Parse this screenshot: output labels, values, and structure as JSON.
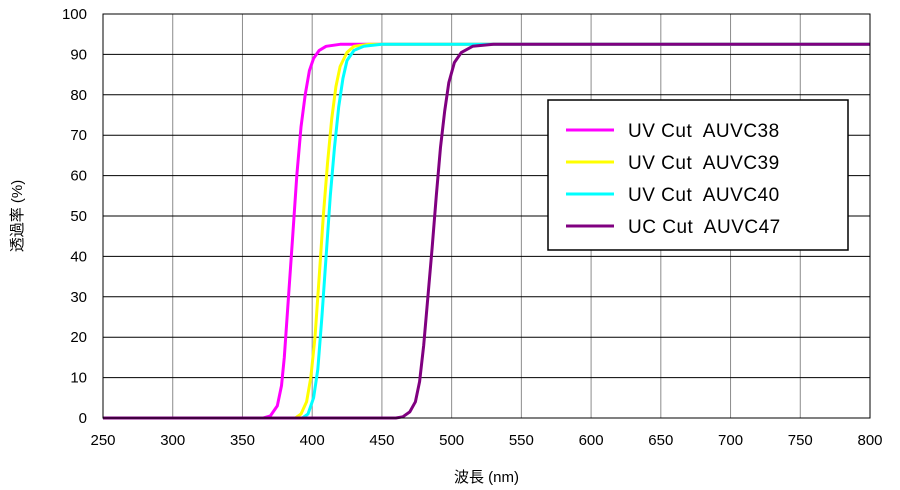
{
  "chart_data": {
    "type": "line",
    "title": "",
    "xlabel": "波長 (nm)",
    "ylabel": "透過率 (%)",
    "xlim": [
      250,
      800
    ],
    "ylim": [
      0,
      100
    ],
    "xticks": [
      250,
      300,
      350,
      400,
      450,
      500,
      550,
      600,
      650,
      700,
      750,
      800
    ],
    "yticks": [
      0,
      10,
      20,
      30,
      40,
      50,
      60,
      70,
      80,
      90,
      100
    ],
    "grid": true,
    "legend_position": "right",
    "series": [
      {
        "name": "UV Cut  AUVC38",
        "color": "#ff00ff",
        "points": [
          [
            250,
            0
          ],
          [
            365,
            0
          ],
          [
            370,
            0.5
          ],
          [
            375,
            3
          ],
          [
            378,
            8
          ],
          [
            380,
            15
          ],
          [
            383,
            30
          ],
          [
            386,
            45
          ],
          [
            389,
            60
          ],
          [
            392,
            72
          ],
          [
            395,
            80
          ],
          [
            398,
            86
          ],
          [
            401,
            89
          ],
          [
            405,
            91
          ],
          [
            410,
            92
          ],
          [
            420,
            92.5
          ],
          [
            800,
            92.5
          ]
        ]
      },
      {
        "name": "UV Cut  AUVC39",
        "color": "#ffff00",
        "points": [
          [
            250,
            0
          ],
          [
            388,
            0
          ],
          [
            392,
            1
          ],
          [
            396,
            4
          ],
          [
            399,
            10
          ],
          [
            402,
            20
          ],
          [
            405,
            35
          ],
          [
            408,
            50
          ],
          [
            411,
            63
          ],
          [
            414,
            74
          ],
          [
            417,
            82
          ],
          [
            420,
            87
          ],
          [
            425,
            90.5
          ],
          [
            430,
            92
          ],
          [
            440,
            92.5
          ],
          [
            800,
            92.5
          ]
        ]
      },
      {
        "name": "UV Cut  AUVC40",
        "color": "#00ffff",
        "points": [
          [
            250,
            0
          ],
          [
            393,
            0
          ],
          [
            397,
            1
          ],
          [
            401,
            5
          ],
          [
            404,
            12
          ],
          [
            407,
            25
          ],
          [
            410,
            40
          ],
          [
            413,
            55
          ],
          [
            416,
            67
          ],
          [
            419,
            77
          ],
          [
            422,
            84
          ],
          [
            425,
            88.5
          ],
          [
            430,
            91
          ],
          [
            437,
            92
          ],
          [
            450,
            92.5
          ],
          [
            800,
            92.5
          ]
        ]
      },
      {
        "name": "UC Cut  AUVC47",
        "color": "#800080",
        "points": [
          [
            250,
            0
          ],
          [
            460,
            0
          ],
          [
            465,
            0.3
          ],
          [
            470,
            1.5
          ],
          [
            474,
            4
          ],
          [
            477,
            9
          ],
          [
            480,
            18
          ],
          [
            483,
            30
          ],
          [
            486,
            42
          ],
          [
            489,
            55
          ],
          [
            492,
            67
          ],
          [
            495,
            76
          ],
          [
            498,
            83
          ],
          [
            502,
            88
          ],
          [
            507,
            90.5
          ],
          [
            515,
            92
          ],
          [
            530,
            92.5
          ],
          [
            800,
            92.5
          ]
        ]
      }
    ]
  }
}
